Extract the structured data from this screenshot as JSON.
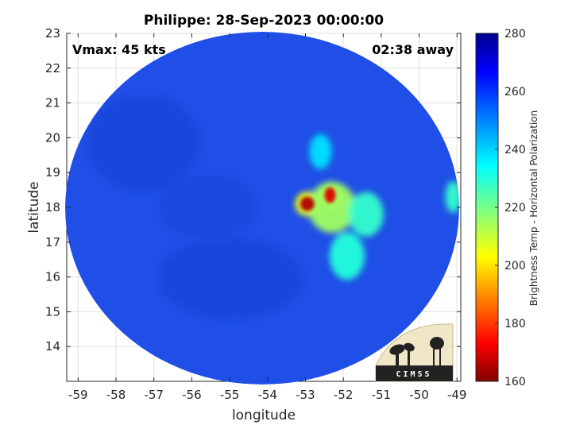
{
  "chart_data": {
    "type": "heatmap",
    "title": "Philippe: 28-Sep-2023 00:00:00",
    "xlabel": "longitude",
    "ylabel": "latitude",
    "xlim": [
      -59.3,
      -48.9
    ],
    "ylim": [
      13.0,
      23.0
    ],
    "xticks": [
      "-59",
      "-58",
      "-57",
      "-56",
      "-55",
      "-54",
      "-53",
      "-52",
      "-51",
      "-50",
      "-49"
    ],
    "yticks": [
      "14",
      "15",
      "16",
      "17",
      "18",
      "19",
      "20",
      "21",
      "22",
      "23"
    ],
    "grid": true,
    "annotations": {
      "vmax": "Vmax: 45 kts",
      "time_offset": "02:38 away"
    },
    "colorbar": {
      "label": "Brightness Temp - Horizontal Polarization",
      "range": [
        160,
        280
      ],
      "ticks": [
        "280",
        "260",
        "240",
        "220",
        "200",
        "180",
        "160"
      ],
      "colormap": "jet"
    },
    "field": {
      "background_K": 268,
      "swath_center": [
        -54.0,
        18.0
      ],
      "features": [
        {
          "name": "core-1",
          "lon": -52.95,
          "lat": 18.1,
          "value_K": 165
        },
        {
          "name": "core-2",
          "lon": -52.35,
          "lat": 18.35,
          "value_K": 170
        },
        {
          "name": "band-inner",
          "lon": -52.3,
          "lat": 18.0,
          "value_K": 215
        },
        {
          "name": "band-east",
          "lon": -51.4,
          "lat": 17.8,
          "value_K": 228
        },
        {
          "name": "band-south",
          "lon": -51.9,
          "lat": 16.6,
          "value_K": 230
        },
        {
          "name": "band-north",
          "lon": -52.6,
          "lat": 19.6,
          "value_K": 238
        },
        {
          "name": "edge-east",
          "lon": -49.1,
          "lat": 18.3,
          "value_K": 228
        }
      ]
    },
    "logo": "CIMSS"
  }
}
